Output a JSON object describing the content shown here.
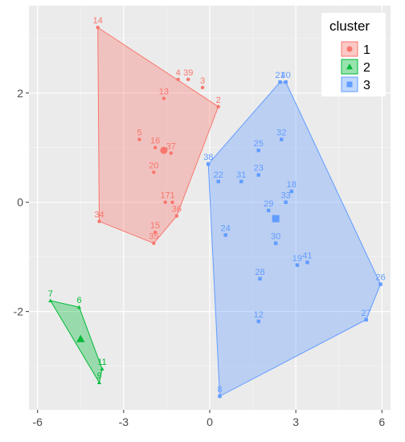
{
  "chart_data": {
    "type": "scatter",
    "title": "",
    "xlabel": "",
    "ylabel": "",
    "xlim": [
      -6.3,
      6.3
    ],
    "ylim": [
      -3.8,
      3.6
    ],
    "x_ticks": [
      -6,
      -3,
      0,
      3,
      6
    ],
    "y_ticks": [
      -2,
      0,
      2
    ],
    "grid": true,
    "legend": {
      "title": "cluster",
      "position": "top-right"
    },
    "series": [
      {
        "name": "1",
        "color": "#F8766D",
        "marker": "circle",
        "hull": [
          14,
          2,
          36,
          35,
          34
        ],
        "centroid": [
          -1.6,
          0.95
        ],
        "points": [
          {
            "label": "14",
            "x": -3.9,
            "y": 3.2
          },
          {
            "label": "4",
            "x": -1.1,
            "y": 2.25
          },
          {
            "label": "39",
            "x": -0.75,
            "y": 2.25
          },
          {
            "label": "3",
            "x": -0.25,
            "y": 2.1
          },
          {
            "label": "13",
            "x": -1.6,
            "y": 1.9
          },
          {
            "label": "2",
            "x": 0.3,
            "y": 1.75
          },
          {
            "label": "5",
            "x": -2.45,
            "y": 1.15
          },
          {
            "label": "16",
            "x": -1.9,
            "y": 1.0
          },
          {
            "label": "37",
            "x": -1.35,
            "y": 0.9
          },
          {
            "label": "20",
            "x": -1.95,
            "y": 0.55
          },
          {
            "label": "17",
            "x": -1.55,
            "y": 0.0
          },
          {
            "label": "1",
            "x": -1.3,
            "y": 0.0
          },
          {
            "label": "36",
            "x": -1.15,
            "y": -0.25
          },
          {
            "label": "34",
            "x": -3.85,
            "y": -0.35
          },
          {
            "label": "15",
            "x": -1.9,
            "y": -0.55
          },
          {
            "label": "35",
            "x": -1.95,
            "y": -0.75
          }
        ]
      },
      {
        "name": "2",
        "color": "#00BA38",
        "marker": "triangle",
        "hull": [
          7,
          6,
          11,
          9
        ],
        "centroid": [
          -4.5,
          -2.5
        ],
        "points": [
          {
            "label": "7",
            "x": -5.55,
            "y": -1.8
          },
          {
            "label": "6",
            "x": -4.55,
            "y": -1.92
          },
          {
            "label": "11",
            "x": -3.75,
            "y": -3.05
          },
          {
            "label": "9",
            "x": -3.85,
            "y": -3.3
          }
        ]
      },
      {
        "name": "3",
        "color": "#619CFF",
        "marker": "square",
        "hull": [
          21,
          40,
          26,
          27,
          8,
          38
        ],
        "centroid": [
          2.3,
          -0.3
        ],
        "points": [
          {
            "label": "21",
            "x": 2.45,
            "y": 2.2
          },
          {
            "label": "40",
            "x": 2.65,
            "y": 2.2
          },
          {
            "label": "25",
            "x": 1.7,
            "y": 0.95
          },
          {
            "label": "32",
            "x": 2.5,
            "y": 1.15
          },
          {
            "label": "38",
            "x": -0.05,
            "y": 0.7
          },
          {
            "label": "22",
            "x": 0.3,
            "y": 0.38
          },
          {
            "label": "31",
            "x": 1.1,
            "y": 0.38
          },
          {
            "label": "23",
            "x": 1.7,
            "y": 0.5
          },
          {
            "label": "18",
            "x": 2.85,
            "y": 0.2
          },
          {
            "label": "33",
            "x": 2.65,
            "y": 0.0
          },
          {
            "label": "29",
            "x": 2.05,
            "y": -0.15
          },
          {
            "label": "24",
            "x": 0.55,
            "y": -0.6
          },
          {
            "label": "30",
            "x": 2.3,
            "y": -0.75
          },
          {
            "label": "19",
            "x": 3.05,
            "y": -1.15
          },
          {
            "label": "41",
            "x": 3.4,
            "y": -1.1
          },
          {
            "label": "28",
            "x": 1.75,
            "y": -1.4
          },
          {
            "label": "26",
            "x": 5.95,
            "y": -1.5
          },
          {
            "label": "12",
            "x": 1.7,
            "y": -2.18
          },
          {
            "label": "27",
            "x": 5.45,
            "y": -2.15
          },
          {
            "label": "8",
            "x": 0.35,
            "y": -3.55
          }
        ]
      }
    ]
  }
}
